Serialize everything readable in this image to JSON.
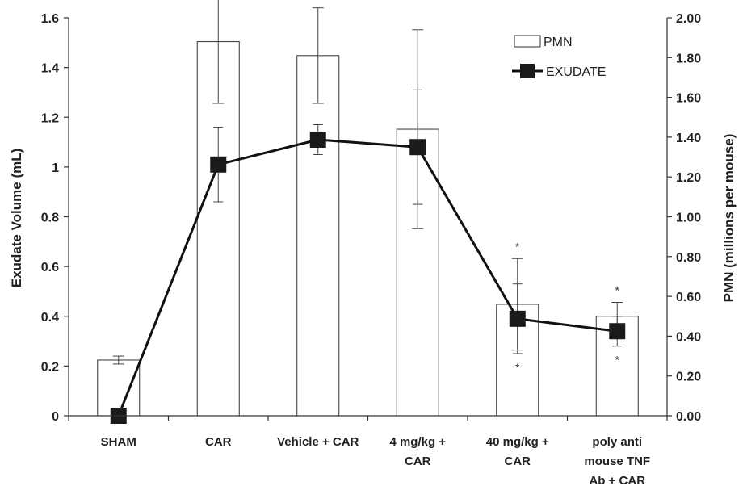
{
  "chart_data": {
    "type": "bar",
    "title": "",
    "categories": [
      [
        "SHAM"
      ],
      [
        "CAR"
      ],
      [
        "Vehicle + CAR"
      ],
      [
        "4 mg/kg +",
        "CAR"
      ],
      [
        "40 mg/kg +",
        "CAR"
      ],
      [
        "poly anti",
        "mouse TNF",
        "Ab + CAR"
      ]
    ],
    "ylabel_left": "Exudate Volume (mL)",
    "ylabel_right": "PMN (millions per mouse)",
    "ylim_left": [
      0,
      1.6
    ],
    "ylim_right": [
      0,
      2.0
    ],
    "yticks_left": [
      "0",
      "0.2",
      "0.4",
      "0.6",
      "0.8",
      "1",
      "1.2",
      "1.4",
      "1.6"
    ],
    "yticks_right": [
      "0.00",
      "0.20",
      "0.40",
      "0.60",
      "0.80",
      "1.00",
      "1.20",
      "1.40",
      "1.60",
      "1.80",
      "2.00"
    ],
    "legend_position": "top-right",
    "series": [
      {
        "name": "PMN",
        "kind": "bar",
        "axis": "right",
        "values": [
          0.28,
          1.88,
          1.81,
          1.44,
          0.56,
          0.5
        ],
        "error": [
          0.02,
          0.31,
          0.24,
          0.5,
          0.23,
          0.07
        ],
        "significance": [
          false,
          false,
          false,
          false,
          true,
          true
        ]
      },
      {
        "name": "EXUDATE",
        "kind": "line",
        "axis": "left",
        "values": [
          0.0,
          1.01,
          1.11,
          1.08,
          0.39,
          0.34
        ],
        "error": [
          0.0,
          0.15,
          0.06,
          0.23,
          0.14,
          0.06
        ],
        "significance": [
          false,
          false,
          false,
          false,
          true,
          true
        ]
      }
    ],
    "significance_marker": "*",
    "colors": {
      "bar_fill": "#ffffff",
      "bar_stroke": "#333333",
      "line": "#111111",
      "marker": "#1a1a1a"
    }
  }
}
